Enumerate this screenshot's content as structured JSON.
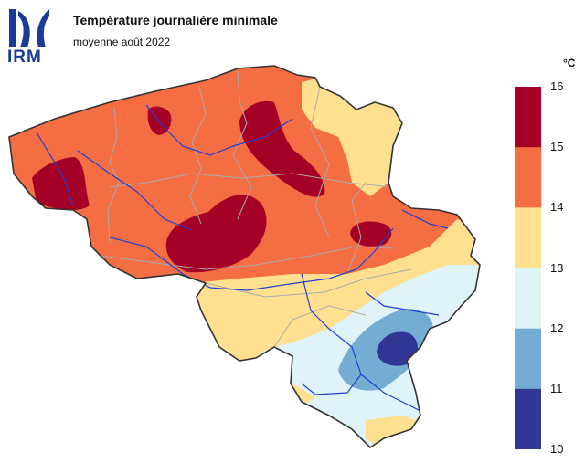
{
  "logo": {
    "text": "IRM",
    "color": "#1b3a9a"
  },
  "header": {
    "title": "Température journalière minimale",
    "subtitle": "moyenne août 2022"
  },
  "legend": {
    "unit": "°C",
    "classes": [
      {
        "min": 15,
        "max": 16,
        "color": "#a50026"
      },
      {
        "min": 14,
        "max": 15,
        "color": "#f46d43"
      },
      {
        "min": 13,
        "max": 14,
        "color": "#fee090"
      },
      {
        "min": 12,
        "max": 13,
        "color": "#e0f3f8"
      },
      {
        "min": 11,
        "max": 12,
        "color": "#74add1"
      },
      {
        "min": 10,
        "max": 11,
        "color": "#313695"
      }
    ],
    "ticks": [
      "16",
      "15",
      "14",
      "13",
      "12",
      "11",
      "10"
    ]
  },
  "map_colors": {
    "border": "#333333",
    "province_lines": "#aaaaaa",
    "rivers": "#1f3fd6"
  }
}
